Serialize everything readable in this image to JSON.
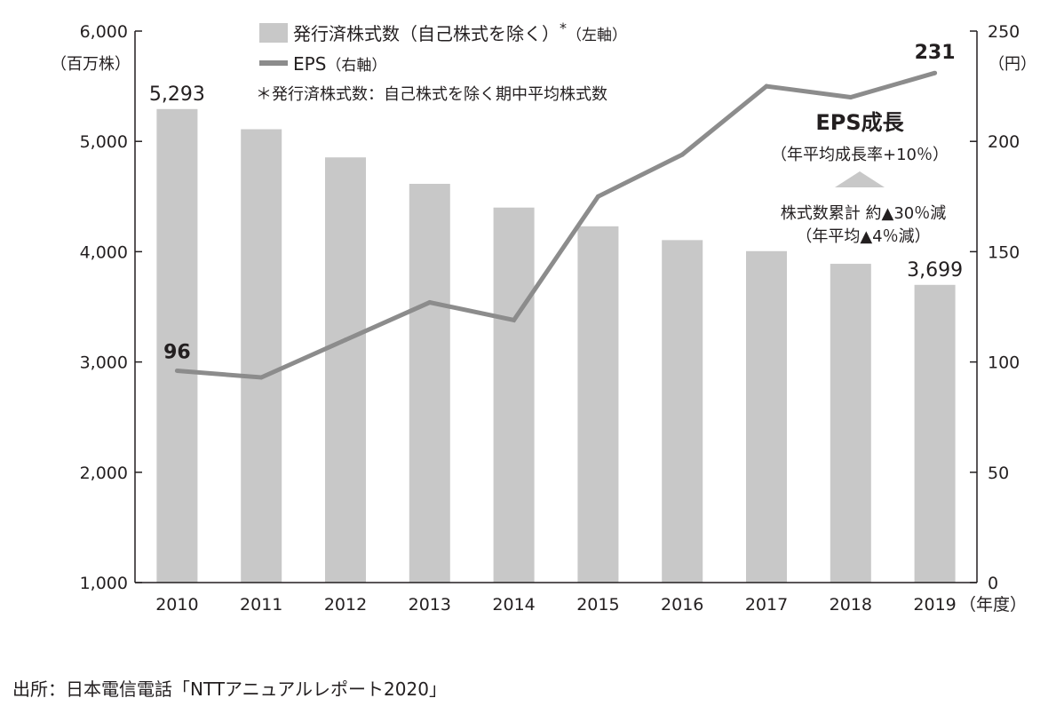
{
  "chart_data": {
    "type": "bar+line",
    "categories": [
      "2010",
      "2011",
      "2012",
      "2013",
      "2014",
      "2015",
      "2016",
      "2017",
      "2018",
      "2019"
    ],
    "x_unit": "（年度）",
    "series": [
      {
        "name": "発行済株式数（自己株式を除く）",
        "name_suffix": "（左軸）",
        "footnote_mark": "*",
        "type": "bar",
        "axis": "left",
        "color": "#c8c8c8",
        "values": [
          5293,
          5110,
          4855,
          4615,
          4400,
          4230,
          4105,
          4005,
          3890,
          3699
        ]
      },
      {
        "name": "EPS",
        "name_suffix": "（右軸）",
        "type": "line",
        "axis": "right",
        "color": "#8c8c8c",
        "values": [
          96,
          93,
          110,
          127,
          119,
          175,
          194,
          225,
          220,
          231
        ]
      }
    ],
    "left_axis": {
      "unit": "（百万株）",
      "ylim": [
        1000,
        6000
      ],
      "ticks": [
        "1,000",
        "2,000",
        "3,000",
        "4,000",
        "5,000",
        "6,000"
      ]
    },
    "right_axis": {
      "unit": "（円）",
      "ylim": [
        0,
        250
      ],
      "ticks": [
        "0",
        "50",
        "100",
        "150",
        "200",
        "250"
      ]
    },
    "data_labels": {
      "bar_first": "5,293",
      "bar_last": "3,699",
      "line_first": "96",
      "line_last": "231"
    },
    "footnote": "＊発行済株式数：自己株式を除く期中平均株式数",
    "annotations": {
      "eps_growth_title": "EPS成長",
      "eps_growth_sub": "（年平均成長率+10％）",
      "shares_line1": "株式数累計 約▲30％減",
      "shares_line2": "（年平均▲4％減）"
    },
    "grid": false,
    "legend_position": "top-center"
  },
  "source": "出所：日本電信電話「NTTアニュアルレポート2020」"
}
